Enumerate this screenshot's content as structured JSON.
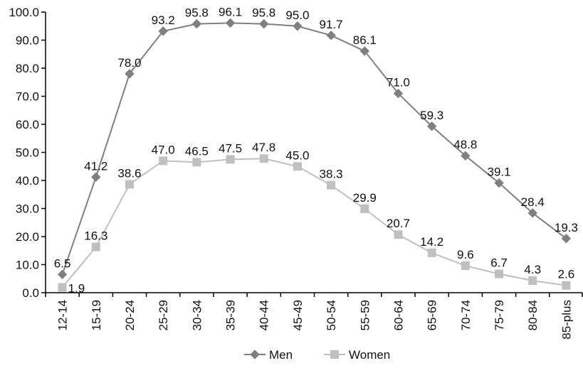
{
  "chart_data": {
    "type": "line",
    "title": "",
    "xlabel": "",
    "ylabel": "",
    "categories": [
      "12-14",
      "15-19",
      "20-24",
      "25-29",
      "30-34",
      "35-39",
      "40-44",
      "45-49",
      "50-54",
      "55-59",
      "60-64",
      "65-69",
      "70-74",
      "75-79",
      "80-84",
      "85-plus"
    ],
    "series": [
      {
        "name": "Men",
        "marker": "diamond",
        "color": "#7f7f7f",
        "values": [
          6.5,
          41.2,
          78.0,
          93.2,
          95.8,
          96.1,
          95.8,
          95.0,
          91.7,
          86.1,
          71.0,
          59.3,
          48.8,
          39.1,
          28.4,
          19.3
        ],
        "labels": [
          "6.5",
          "41.2",
          "78.0",
          "93.2",
          "95.8",
          "96.1",
          "95.8",
          "95.0",
          "91.7",
          "86.1",
          "71.0",
          "59.3",
          "48.8",
          "39.1",
          "28.4",
          "19.3"
        ]
      },
      {
        "name": "Women",
        "marker": "square",
        "color": "#bfbfbf",
        "values": [
          1.9,
          16.3,
          38.6,
          47.0,
          46.5,
          47.5,
          47.8,
          45.0,
          38.3,
          29.9,
          20.7,
          14.2,
          9.6,
          6.7,
          4.3,
          2.6
        ],
        "labels": [
          "1.9",
          "16.3",
          "38.6",
          "47.0",
          "46.5",
          "47.5",
          "47.8",
          "45.0",
          "38.3",
          "29.9",
          "20.7",
          "14.2",
          "9.6",
          "6.7",
          "4.3",
          "2.6"
        ]
      }
    ],
    "ylim": [
      0,
      100
    ],
    "yticks": [
      0,
      10,
      20,
      30,
      40,
      50,
      60,
      70,
      80,
      90,
      100
    ],
    "ytick_labels": [
      "0.0",
      "10.0",
      "20.0",
      "30.0",
      "40.0",
      "50.0",
      "60.0",
      "70.0",
      "80.0",
      "90.0",
      "100.0"
    ],
    "grid": false,
    "legend_position": "bottom"
  }
}
